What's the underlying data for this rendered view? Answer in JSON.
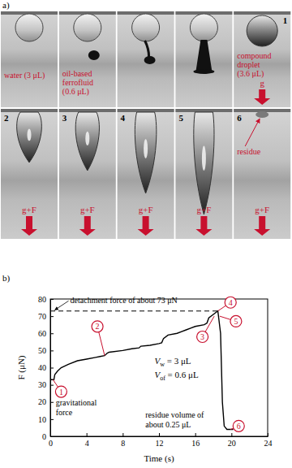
{
  "panel_a": {
    "label": "a)",
    "frames": [
      {
        "number": null,
        "caption": [
          "water (3 μL)"
        ],
        "force": null
      },
      {
        "number": null,
        "caption": [
          "oil-based",
          "ferrofluid",
          "(0.6 μL)"
        ],
        "force": null
      },
      {
        "number": null,
        "caption": [],
        "force": null
      },
      {
        "number": null,
        "caption": [],
        "force": null
      },
      {
        "number": "1",
        "caption": [
          "compound",
          "droplet",
          "(3.6 μL)"
        ],
        "force": "g"
      },
      {
        "number": "2",
        "caption": [],
        "force": "g+F"
      },
      {
        "number": "3",
        "caption": [],
        "force": "g+F"
      },
      {
        "number": "4",
        "caption": [],
        "force": "g+F"
      },
      {
        "number": "5",
        "caption": [],
        "force": "g+F"
      },
      {
        "number": "6",
        "caption": [
          "residue"
        ],
        "force": "g+F"
      }
    ]
  },
  "chart_data": {
    "type": "line",
    "label": "b)",
    "xlabel": "Time (s)",
    "ylabel": "F (μN)",
    "xlim": [
      0,
      24
    ],
    "ylim": [
      0,
      80
    ],
    "xticks": [
      0,
      4,
      8,
      12,
      16,
      20,
      24
    ],
    "yticks": [
      0,
      10,
      20,
      30,
      40,
      50,
      60,
      70,
      80
    ],
    "grid": false,
    "x": [
      0,
      0.4,
      0.5,
      0.8,
      1.2,
      2,
      3,
      4,
      5,
      5.5,
      6,
      6.3,
      6.5,
      8,
      9,
      9.8,
      10,
      11,
      12,
      12.3,
      12.5,
      13,
      14,
      14.5,
      15,
      15.5,
      16,
      17,
      17.3,
      17.5,
      18,
      18.5,
      18.8,
      19,
      19.2,
      19.5,
      20.2
    ],
    "series": [
      {
        "color": "#000000",
        "line_style": "solid",
        "values": [
          33,
          33,
          36,
          38,
          40,
          42,
          44,
          45,
          46,
          46.5,
          47,
          48.5,
          49,
          50,
          51,
          51.5,
          52.5,
          53,
          54,
          54.5,
          57,
          59,
          60,
          61,
          62,
          63,
          64,
          65,
          66,
          69,
          71,
          73,
          60,
          20,
          6,
          4,
          4
        ]
      }
    ],
    "reference_line": {
      "value": 73,
      "x": [
        0,
        18.5
      ],
      "line_style": "dashed",
      "label": "detachment force of about 73 μN",
      "label_position": [
        2.2,
        77.5
      ],
      "arrow_to": [
        0.5,
        73.6
      ]
    },
    "annotations": [
      {
        "text": "1",
        "point": [
          0.3,
          33
        ],
        "at": [
          1.2,
          26
        ]
      },
      {
        "text": "2",
        "point": [
          6,
          47
        ],
        "at": [
          5.2,
          64
        ]
      },
      {
        "text": "3",
        "point": [
          18.1,
          70
        ],
        "at": [
          16.8,
          58
        ]
      },
      {
        "text": "4",
        "point": [
          18.5,
          73
        ],
        "at": [
          19.9,
          78
        ]
      },
      {
        "text": "5",
        "point": [
          18.7,
          70
        ],
        "at": [
          20.5,
          67
        ]
      },
      {
        "text": "6",
        "point": [
          19.9,
          4
        ],
        "at": [
          20.8,
          6
        ]
      }
    ],
    "notes": [
      {
        "lines": [
          "gravitational",
          "force"
        ],
        "at": [
          0.6,
          18
        ]
      },
      {
        "lines": [
          "residue volume of",
          "about 0.25 μL"
        ],
        "at": [
          10.5,
          11
        ]
      }
    ],
    "formulas": [
      {
        "main": "V",
        "subscript": "w",
        "rest": " = 3 μL",
        "at": [
          11.5,
          42
        ]
      },
      {
        "main": "V",
        "subscript": "of",
        "rest": " = 0.6 μL",
        "at": [
          11.5,
          34
        ]
      }
    ]
  }
}
